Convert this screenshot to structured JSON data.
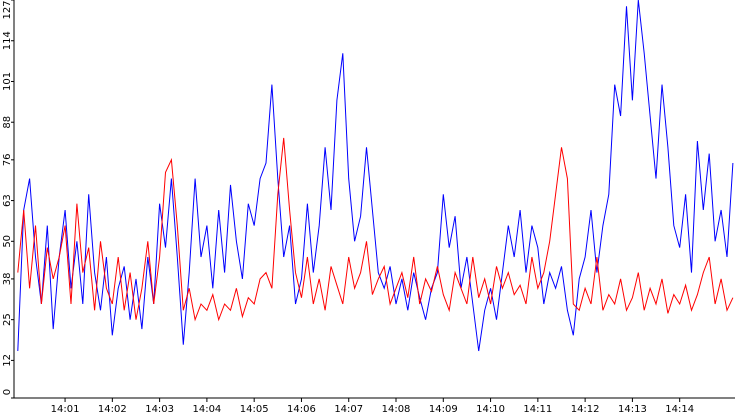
{
  "chart_data": {
    "type": "line",
    "x": [
      0,
      0.125,
      0.25,
      0.375,
      0.5,
      0.625,
      0.75,
      0.875,
      1,
      1.125,
      1.25,
      1.375,
      1.5,
      1.625,
      1.75,
      1.875,
      2,
      2.125,
      2.25,
      2.375,
      2.5,
      2.625,
      2.75,
      2.875,
      3,
      3.125,
      3.25,
      3.375,
      3.5,
      3.625,
      3.75,
      3.875,
      4,
      4.125,
      4.25,
      4.375,
      4.5,
      4.625,
      4.75,
      4.875,
      5,
      5.125,
      5.25,
      5.375,
      5.5,
      5.625,
      5.75,
      5.875,
      6,
      6.125,
      6.25,
      6.375,
      6.5,
      6.625,
      6.75,
      6.875,
      7,
      7.125,
      7.25,
      7.375,
      7.5,
      7.625,
      7.75,
      7.875,
      8,
      8.125,
      8.25,
      8.375,
      8.5,
      8.625,
      8.75,
      8.875,
      9,
      9.125,
      9.25,
      9.375,
      9.5,
      9.625,
      9.75,
      9.875,
      10,
      10.125,
      10.25,
      10.375,
      10.5,
      10.625,
      10.75,
      10.875,
      11,
      11.125,
      11.25,
      11.375,
      11.5,
      11.625,
      11.75,
      11.875,
      12,
      12.125,
      12.25,
      12.375,
      12.5,
      12.625,
      12.75,
      12.875,
      13,
      13.125,
      13.25,
      13.375,
      13.5,
      13.625,
      13.75,
      13.875,
      14,
      14.125,
      14.25,
      14.375,
      14.5,
      14.625,
      14.75,
      14.875,
      15,
      15.125
    ],
    "series": [
      {
        "color": "#0000ff",
        "values": [
          15,
          60,
          70,
          45,
          30,
          55,
          22,
          45,
          60,
          35,
          50,
          30,
          65,
          40,
          28,
          45,
          20,
          35,
          42,
          25,
          38,
          22,
          45,
          30,
          62,
          48,
          70,
          45,
          17,
          40,
          70,
          45,
          55,
          35,
          60,
          40,
          68,
          50,
          38,
          62,
          55,
          70,
          75,
          100,
          70,
          45,
          55,
          30,
          38,
          62,
          40,
          55,
          80,
          60,
          95,
          110,
          70,
          50,
          58,
          80,
          60,
          40,
          35,
          42,
          30,
          38,
          28,
          40,
          32,
          25,
          35,
          40,
          65,
          48,
          58,
          35,
          45,
          30,
          15,
          28,
          35,
          25,
          40,
          55,
          45,
          60,
          40,
          55,
          48,
          30,
          40,
          35,
          42,
          28,
          20,
          38,
          45,
          60,
          40,
          55,
          65,
          100,
          90,
          125,
          95,
          127,
          110,
          90,
          70,
          100,
          80,
          55,
          48,
          65,
          40,
          82,
          60,
          78,
          50,
          60,
          45,
          75
        ]
      },
      {
        "color": "#ff0000",
        "values": [
          40,
          60,
          35,
          55,
          30,
          48,
          38,
          45,
          55,
          30,
          62,
          40,
          48,
          28,
          50,
          35,
          30,
          45,
          28,
          40,
          25,
          35,
          50,
          30,
          45,
          72,
          76,
          55,
          28,
          35,
          25,
          30,
          28,
          33,
          25,
          30,
          28,
          35,
          26,
          32,
          30,
          38,
          40,
          35,
          65,
          83,
          60,
          40,
          32,
          45,
          30,
          38,
          28,
          42,
          36,
          30,
          45,
          35,
          40,
          50,
          33,
          38,
          42,
          30,
          35,
          40,
          32,
          45,
          30,
          38,
          34,
          42,
          33,
          28,
          40,
          35,
          30,
          45,
          32,
          38,
          30,
          42,
          35,
          40,
          33,
          36,
          30,
          45,
          35,
          40,
          50,
          65,
          80,
          70,
          30,
          28,
          35,
          30,
          45,
          28,
          33,
          30,
          38,
          28,
          32,
          40,
          28,
          35,
          30,
          38,
          27,
          33,
          30,
          36,
          28,
          33,
          40,
          45,
          30,
          38,
          28,
          32
        ]
      }
    ],
    "xlim": [
      -0.08,
      15.17
    ],
    "xticks": [
      {
        "value": 1,
        "label": "14:01"
      },
      {
        "value": 2,
        "label": "14:02"
      },
      {
        "value": 3,
        "label": "14:03"
      },
      {
        "value": 4,
        "label": "14:04"
      },
      {
        "value": 5,
        "label": "14:05"
      },
      {
        "value": 6,
        "label": "14:06"
      },
      {
        "value": 7,
        "label": "14:07"
      },
      {
        "value": 8,
        "label": "14:08"
      },
      {
        "value": 9,
        "label": "14:09"
      },
      {
        "value": 10,
        "label": "14:10"
      },
      {
        "value": 11,
        "label": "14:11"
      },
      {
        "value": 12,
        "label": "14:12"
      },
      {
        "value": 13,
        "label": "14:13"
      },
      {
        "value": 14,
        "label": "14:14"
      }
    ],
    "ylim": [
      0,
      127
    ],
    "yticks": [
      0,
      12,
      25,
      38,
      50,
      63,
      76,
      88,
      101,
      114,
      127
    ]
  }
}
